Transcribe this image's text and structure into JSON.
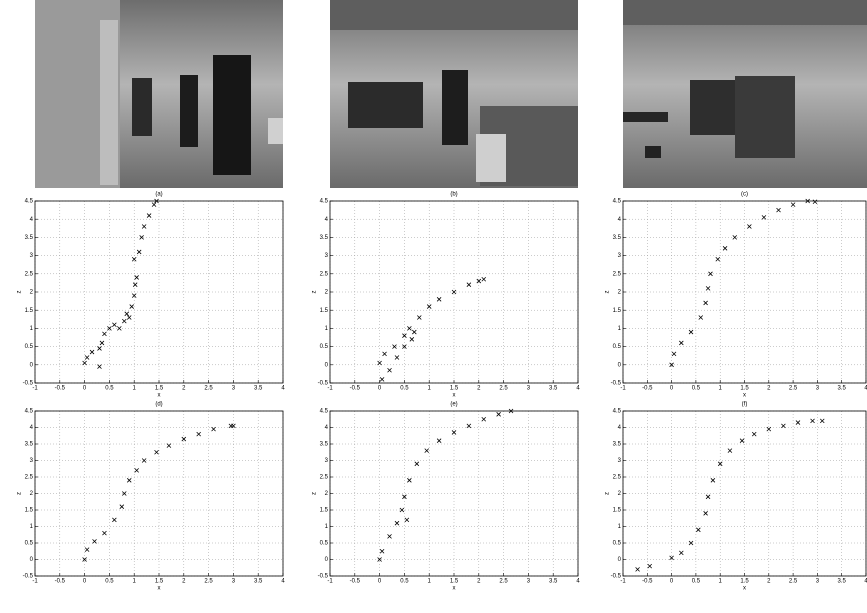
{
  "images": [
    {
      "caption": "(a)"
    },
    {
      "caption": "(b)"
    },
    {
      "caption": "(c)"
    }
  ],
  "chart_data": [
    {
      "type": "scatter",
      "marker": "x",
      "color": "#000000",
      "grid": true,
      "xlabel": "x",
      "ylabel": "z",
      "caption": "(d)",
      "xlim": [
        -1,
        4
      ],
      "ylim": [
        -0.5,
        4.5
      ],
      "xticks": [
        -1,
        -0.5,
        0,
        0.5,
        1,
        1.5,
        2,
        2.5,
        3,
        3.5,
        4
      ],
      "yticks": [
        -0.5,
        0,
        0.5,
        1,
        1.5,
        2,
        2.5,
        3,
        3.5,
        4,
        4.5
      ],
      "x": [
        0,
        0.05,
        0.15,
        0.3,
        0.35,
        0.4,
        0.5,
        0.6,
        0.7,
        0.8,
        0.85,
        0.9,
        0.95,
        1.0,
        1.02,
        1.05,
        1.0,
        1.1,
        1.15,
        1.2,
        1.3,
        1.4,
        1.45,
        0.3
      ],
      "values": [
        0.05,
        0.2,
        0.35,
        0.45,
        0.6,
        0.85,
        1.0,
        1.1,
        1.0,
        1.2,
        1.4,
        1.3,
        1.6,
        1.9,
        2.2,
        2.4,
        2.9,
        3.1,
        3.5,
        3.8,
        4.1,
        4.4,
        4.5,
        -0.05
      ]
    },
    {
      "type": "scatter",
      "marker": "x",
      "color": "#000000",
      "grid": true,
      "xlabel": "x",
      "ylabel": "z",
      "caption": "(e)",
      "xlim": [
        -1,
        4
      ],
      "ylim": [
        -0.5,
        4.5
      ],
      "xticks": [
        -1,
        -0.5,
        0,
        0.5,
        1,
        1.5,
        2,
        2.5,
        3,
        3.5,
        4
      ],
      "yticks": [
        -0.5,
        0,
        0.5,
        1,
        1.5,
        2,
        2.5,
        3,
        3.5,
        4,
        4.5
      ],
      "x": [
        0,
        0.1,
        0.3,
        0.5,
        0.6,
        0.8,
        1.0,
        1.2,
        1.5,
        1.8,
        2.0,
        2.1,
        0.05,
        0.2,
        0.35,
        0.5,
        0.65,
        0.7
      ],
      "values": [
        0.05,
        0.3,
        0.5,
        0.8,
        1.0,
        1.3,
        1.6,
        1.8,
        2.0,
        2.2,
        2.3,
        2.35,
        -0.4,
        -0.15,
        0.2,
        0.5,
        0.7,
        0.9
      ]
    },
    {
      "type": "scatter",
      "marker": "x",
      "color": "#000000",
      "grid": true,
      "xlabel": "x",
      "ylabel": "z",
      "caption": "(f)",
      "xlim": [
        -1,
        4
      ],
      "ylim": [
        -0.5,
        4.5
      ],
      "xticks": [
        -1,
        -0.5,
        0,
        0.5,
        1,
        1.5,
        2,
        2.5,
        3,
        3.5,
        4
      ],
      "yticks": [
        -0.5,
        0,
        0.5,
        1,
        1.5,
        2,
        2.5,
        3,
        3.5,
        4,
        4.5
      ],
      "x": [
        0,
        0.05,
        0.2,
        0.4,
        0.6,
        0.7,
        0.75,
        0.8,
        0.95,
        1.1,
        1.3,
        1.6,
        1.9,
        2.2,
        2.5,
        2.8,
        2.95
      ],
      "values": [
        0,
        0.3,
        0.6,
        0.9,
        1.3,
        1.7,
        2.1,
        2.5,
        2.9,
        3.2,
        3.5,
        3.8,
        4.05,
        4.25,
        4.4,
        4.5,
        4.48
      ]
    },
    {
      "type": "scatter",
      "marker": "x",
      "color": "#000000",
      "grid": true,
      "xlabel": "x",
      "ylabel": "z",
      "xlim": [
        -1,
        4
      ],
      "ylim": [
        -0.5,
        4.5
      ],
      "xticks": [
        -1,
        -0.5,
        0,
        0.5,
        1,
        1.5,
        2,
        2.5,
        3,
        3.5,
        4
      ],
      "yticks": [
        -0.5,
        0,
        0.5,
        1,
        1.5,
        2,
        2.5,
        3,
        3.5,
        4,
        4.5
      ],
      "x": [
        0,
        0.05,
        0.2,
        0.4,
        0.6,
        0.75,
        0.8,
        0.9,
        1.05,
        1.2,
        1.45,
        1.7,
        2.0,
        2.3,
        2.6,
        2.95,
        3.0
      ],
      "values": [
        0,
        0.3,
        0.55,
        0.8,
        1.2,
        1.6,
        2.0,
        2.4,
        2.7,
        3.0,
        3.25,
        3.45,
        3.65,
        3.8,
        3.95,
        4.05,
        4.05
      ]
    },
    {
      "type": "scatter",
      "marker": "x",
      "color": "#000000",
      "grid": true,
      "xlabel": "x",
      "ylabel": "z",
      "xlim": [
        -1,
        4
      ],
      "ylim": [
        -0.5,
        4.5
      ],
      "xticks": [
        -1,
        -0.5,
        0,
        0.5,
        1,
        1.5,
        2,
        2.5,
        3,
        3.5,
        4
      ],
      "yticks": [
        -0.5,
        0,
        0.5,
        1,
        1.5,
        2,
        2.5,
        3,
        3.5,
        4,
        4.5
      ],
      "x": [
        0,
        0.05,
        0.2,
        0.35,
        0.45,
        0.5,
        0.6,
        0.75,
        0.95,
        1.2,
        1.5,
        1.8,
        2.1,
        2.4,
        2.65,
        0.55
      ],
      "values": [
        0,
        0.25,
        0.7,
        1.1,
        1.5,
        1.9,
        2.4,
        2.9,
        3.3,
        3.6,
        3.85,
        4.05,
        4.25,
        4.4,
        4.5,
        1.2
      ]
    },
    {
      "type": "scatter",
      "marker": "x",
      "color": "#000000",
      "grid": true,
      "xlabel": "x",
      "ylabel": "z",
      "xlim": [
        -1,
        4
      ],
      "ylim": [
        -0.5,
        4.5
      ],
      "xticks": [
        -1,
        -0.5,
        0,
        0.5,
        1,
        1.5,
        2,
        2.5,
        3,
        3.5,
        4
      ],
      "yticks": [
        -0.5,
        0,
        0.5,
        1,
        1.5,
        2,
        2.5,
        3,
        3.5,
        4,
        4.5
      ],
      "x": [
        -0.7,
        -0.45,
        0,
        0.2,
        0.4,
        0.55,
        0.7,
        0.75,
        0.85,
        1.0,
        1.2,
        1.45,
        1.7,
        2.0,
        2.3,
        2.6,
        2.9,
        3.1
      ],
      "values": [
        -0.3,
        -0.2,
        0.05,
        0.2,
        0.5,
        0.9,
        1.4,
        1.9,
        2.4,
        2.9,
        3.3,
        3.6,
        3.8,
        3.95,
        4.05,
        4.15,
        4.2,
        4.2
      ]
    }
  ]
}
